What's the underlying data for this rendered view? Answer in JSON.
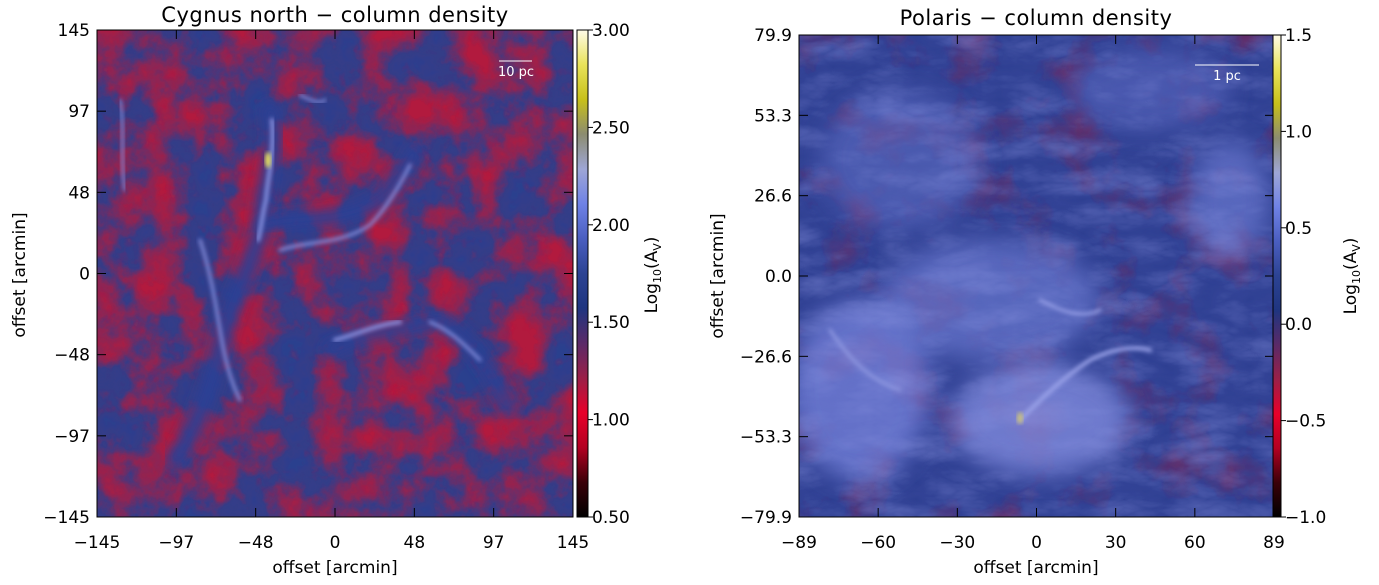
{
  "colors": {
    "colormap": [
      "#000000",
      "#3a0008",
      "#b30022",
      "#e8002a",
      "#9a2048",
      "#5a2a68",
      "#1f3580",
      "#2c4393",
      "#4a5ec0",
      "#6f82e6",
      "#9ea6d6",
      "#8c8c70",
      "#c7c01a",
      "#e9e35a",
      "#fffbe8"
    ],
    "map_background": "#7a2252",
    "structure": "#8088d8",
    "scale_bar": "#ffffff"
  },
  "chart_data": [
    {
      "type": "heatmap",
      "title": "Cygnus north − column density",
      "xlabel": "offset [arcmin]",
      "ylabel": "offset [arcmin]",
      "xlim": [
        -145,
        145
      ],
      "ylim": [
        -145,
        145
      ],
      "xticks": [
        "−145",
        "−97",
        "−48",
        "0",
        "48",
        "97",
        "145"
      ],
      "yticks": [
        "−145",
        "−97",
        "−48",
        "0",
        "48",
        "97",
        "145"
      ],
      "colorbar": {
        "label": "Log10(Av)",
        "label_main": "Log",
        "label_sub": "10",
        "label_paren_open": "(A",
        "label_sub2": "V",
        "label_paren_close": ")",
        "range": [
          0.5,
          3.0
        ],
        "ticks": [
          "0.50",
          "1.00",
          "1.50",
          "2.00",
          "2.50",
          "3.00"
        ]
      },
      "scale_bar": "10 pc"
    },
    {
      "type": "heatmap",
      "title": "Polaris  − column density",
      "xlabel": "offset [arcmin]",
      "ylabel": "offset [arcmin]",
      "xlim": [
        -89,
        89
      ],
      "ylim": [
        -79.9,
        79.9
      ],
      "xticks": [
        "−89",
        "−60",
        "−30",
        "0",
        "30",
        "60",
        "89"
      ],
      "yticks": [
        "−79.9",
        "−53.3",
        "−26.6",
        "0.0",
        "26.6",
        "53.3",
        "79.9"
      ],
      "colorbar": {
        "label": "Log10(Av)",
        "label_main": "Log",
        "label_sub": "10",
        "label_paren_open": "(A",
        "label_sub2": "V",
        "label_paren_close": ")",
        "range": [
          -1.0,
          1.5
        ],
        "ticks": [
          "−1.0",
          "−0.5",
          "0.0",
          "0.5",
          "1.0",
          "1.5"
        ]
      },
      "scale_bar": "1 pc"
    }
  ]
}
